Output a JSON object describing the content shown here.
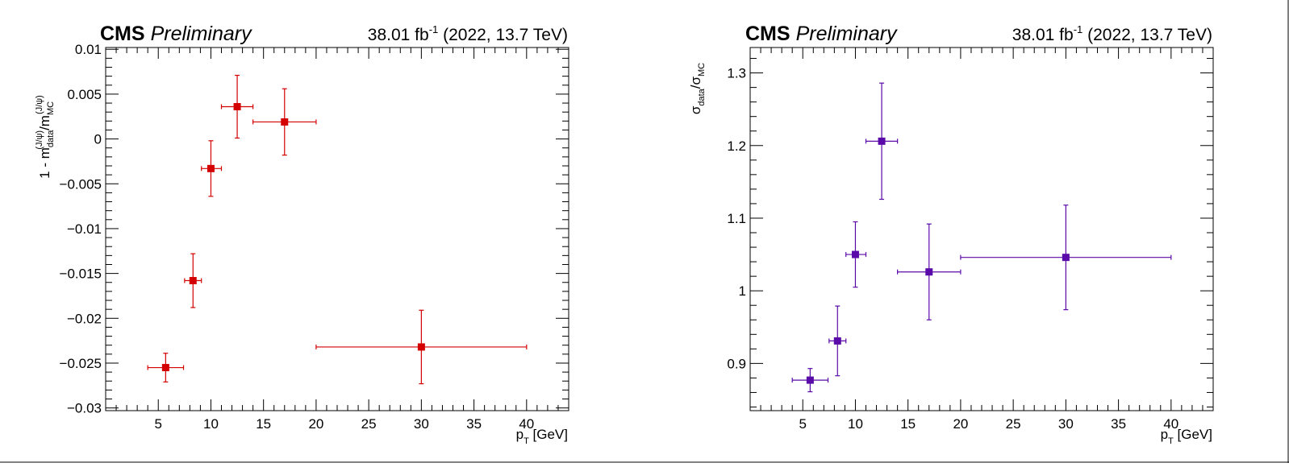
{
  "chart_data": [
    {
      "type": "scatter",
      "title_bold": "CMS",
      "title_italic": "Preliminary",
      "lumi_left": "38.01 fb",
      "lumi_sup": "-1",
      "lumi_right": " (2022, 13.7 TeV)",
      "xlabel": {
        "main": "p",
        "sub": "T",
        "rest": " [GeV]"
      },
      "ylabel": {
        "pre": "1 - m",
        "sub1": "data",
        "sup1": "(J/ψ)",
        "mid": "/m",
        "sub2": "MC",
        "sup2": "(J/ψ)"
      },
      "xlim": [
        0,
        44
      ],
      "ylim": [
        -0.0303,
        0.0102
      ],
      "xticks": [
        5,
        10,
        15,
        20,
        25,
        30,
        35,
        40
      ],
      "xtick_labels": [
        "5",
        "10",
        "15",
        "20",
        "25",
        "30",
        "35",
        "40"
      ],
      "yticks": [
        -0.03,
        -0.025,
        -0.02,
        -0.015,
        -0.01,
        -0.005,
        0,
        0.005,
        0.01
      ],
      "ytick_labels": [
        "−0.03",
        "−0.025",
        "−0.02",
        "−0.015",
        "−0.01",
        "−0.005",
        "0",
        "0.005",
        "0.01"
      ],
      "color": "#d40000",
      "points": [
        {
          "x": 5.7,
          "xlo": 4,
          "xhi": 7.4,
          "y": -0.0255,
          "yerr": 0.0016
        },
        {
          "x": 8.3,
          "xlo": 7.5,
          "xhi": 9.1,
          "y": -0.0158,
          "yerr": 0.003
        },
        {
          "x": 10,
          "xlo": 9.1,
          "xhi": 11,
          "y": -0.0033,
          "yerr": 0.0031
        },
        {
          "x": 12.5,
          "xlo": 11,
          "xhi": 14,
          "y": 0.0036,
          "yerr": 0.0035
        },
        {
          "x": 17,
          "xlo": 14,
          "xhi": 20,
          "y": 0.0019,
          "yerr": 0.0037
        },
        {
          "x": 30,
          "xlo": 20,
          "xhi": 40,
          "y": -0.0232,
          "yerr": 0.0041
        }
      ]
    },
    {
      "type": "scatter",
      "title_bold": "CMS",
      "title_italic": "Preliminary",
      "lumi_left": "38.01 fb",
      "lumi_sup": "-1",
      "lumi_right": " (2022, 13.7 TeV)",
      "xlabel": {
        "main": "p",
        "sub": "T",
        "rest": " [GeV]"
      },
      "ylabel": {
        "pre": "σ",
        "sub1": "data",
        "mid": "/σ",
        "sub2": "MC"
      },
      "xlim": [
        0,
        44
      ],
      "ylim": [
        0.835,
        1.335
      ],
      "xticks": [
        5,
        10,
        15,
        20,
        25,
        30,
        35,
        40
      ],
      "xtick_labels": [
        "5",
        "10",
        "15",
        "20",
        "25",
        "30",
        "35",
        "40"
      ],
      "yticks": [
        0.9,
        1.0,
        1.1,
        1.2,
        1.3
      ],
      "ytick_labels": [
        "0.9",
        "1",
        "1.1",
        "1.2",
        "1.3"
      ],
      "color": "#5a0aa8",
      "points": [
        {
          "x": 5.7,
          "xlo": 4,
          "xhi": 7.4,
          "y": 0.877,
          "yerr": 0.016
        },
        {
          "x": 8.3,
          "xlo": 7.5,
          "xhi": 9.1,
          "y": 0.931,
          "yerr": 0.048
        },
        {
          "x": 10,
          "xlo": 9.1,
          "xhi": 11,
          "y": 1.05,
          "yerr": 0.045
        },
        {
          "x": 12.5,
          "xlo": 11,
          "xhi": 14,
          "y": 1.206,
          "yerr": 0.08
        },
        {
          "x": 17,
          "xlo": 14,
          "xhi": 20,
          "y": 1.026,
          "yerr": 0.066
        },
        {
          "x": 30,
          "xlo": 20,
          "xhi": 40,
          "y": 1.046,
          "yerr": 0.072
        }
      ]
    }
  ]
}
